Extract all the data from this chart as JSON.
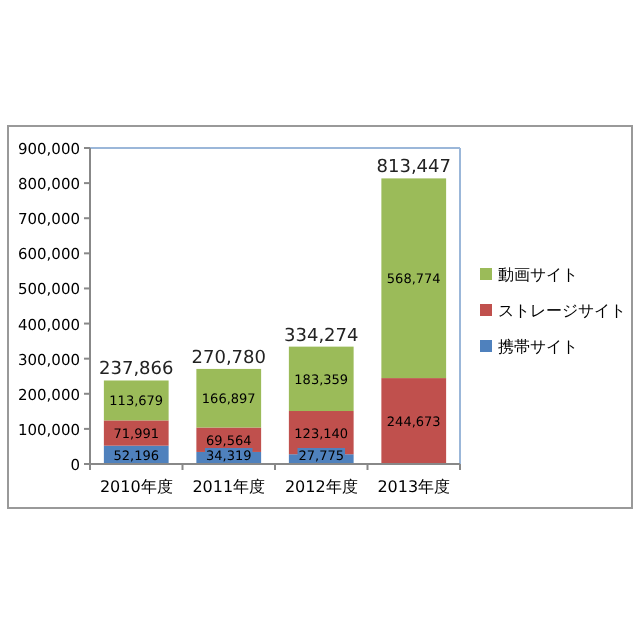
{
  "chart_data": {
    "type": "bar",
    "stacked": true,
    "categories": [
      "2010年度",
      "2011年度",
      "2012年度",
      "2013年度"
    ],
    "series": [
      {
        "name": "携帯サイト",
        "color": "#4f81bd",
        "values": [
          52196,
          34319,
          27775,
          0
        ],
        "value_labels": [
          "52,196",
          "34,319",
          "27,775",
          null
        ]
      },
      {
        "name": "ストレージサイト",
        "color": "#c0504d",
        "values": [
          71991,
          69564,
          123140,
          244673
        ],
        "value_labels": [
          "71,991",
          "69,564",
          "123,140",
          "244,673"
        ]
      },
      {
        "name": "動画サイト",
        "color": "#9bbb59",
        "values": [
          113679,
          166897,
          183359,
          568774
        ],
        "value_labels": [
          "113,679",
          "166,897",
          "183,359",
          "568,774"
        ]
      }
    ],
    "totals": [
      "237,866",
      "270,780",
      "334,274",
      "813,447"
    ],
    "ylim": [
      0,
      900000
    ],
    "yticks": [
      {
        "value": 0,
        "label": "0"
      },
      {
        "value": 100000,
        "label": "100,000"
      },
      {
        "value": 200000,
        "label": "200,000"
      },
      {
        "value": 300000,
        "label": "300,000"
      },
      {
        "value": 400000,
        "label": "400,000"
      },
      {
        "value": 500000,
        "label": "500,000"
      },
      {
        "value": 600000,
        "label": "600,000"
      },
      {
        "value": 700000,
        "label": "700,000"
      },
      {
        "value": 800000,
        "label": "800,000"
      },
      {
        "value": 900000,
        "label": "900,000"
      }
    ],
    "grid": false,
    "legend": "right"
  }
}
